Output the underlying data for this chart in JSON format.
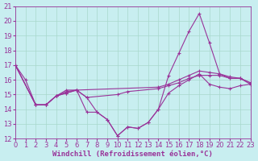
{
  "background_color": "#c8eef0",
  "grid_color": "#a8d8cc",
  "line_color": "#993399",
  "xlabel": "Windchill (Refroidissement éolien,°C)",
  "ylim": [
    12,
    21
  ],
  "xlim": [
    0,
    23
  ],
  "yticks": [
    12,
    13,
    14,
    15,
    16,
    17,
    18,
    19,
    20,
    21
  ],
  "xticks": [
    0,
    1,
    2,
    3,
    4,
    5,
    6,
    7,
    8,
    9,
    10,
    11,
    12,
    13,
    14,
    15,
    16,
    17,
    18,
    19,
    20,
    21,
    22,
    23
  ],
  "lines": [
    {
      "x": [
        0,
        1,
        2,
        3,
        4,
        5,
        6,
        7,
        8,
        9,
        10,
        11,
        12,
        13,
        14,
        15,
        16,
        17,
        18,
        19,
        20,
        21,
        22,
        23
      ],
      "y": [
        17.0,
        16.0,
        14.3,
        14.3,
        14.9,
        15.3,
        15.3,
        13.8,
        13.8,
        13.3,
        12.2,
        12.8,
        12.7,
        13.1,
        14.0,
        16.3,
        17.8,
        19.3,
        20.5,
        18.5,
        16.4,
        16.1,
        16.1,
        15.7
      ]
    },
    {
      "x": [
        0,
        2,
        3,
        4,
        5,
        6,
        14,
        15,
        16,
        17,
        18,
        19,
        20,
        21,
        22,
        23
      ],
      "y": [
        17.0,
        14.3,
        14.3,
        14.9,
        15.2,
        15.3,
        15.5,
        15.7,
        16.0,
        16.3,
        16.6,
        16.5,
        16.4,
        16.2,
        16.1,
        15.8
      ]
    },
    {
      "x": [
        0,
        2,
        3,
        4,
        5,
        6,
        7,
        10,
        11,
        14,
        15,
        16,
        17,
        18,
        19,
        20,
        21,
        22,
        23
      ],
      "y": [
        17.0,
        14.3,
        14.3,
        14.9,
        15.1,
        15.3,
        14.8,
        15.0,
        15.2,
        15.4,
        15.6,
        15.8,
        16.1,
        16.3,
        16.3,
        16.3,
        16.1,
        16.1,
        15.8
      ]
    },
    {
      "x": [
        0,
        2,
        3,
        4,
        5,
        6,
        7,
        8,
        9,
        10,
        11,
        12,
        13,
        14,
        15,
        16,
        17,
        18,
        19,
        20,
        21,
        22,
        23
      ],
      "y": [
        17.0,
        14.3,
        14.3,
        14.9,
        15.1,
        15.3,
        14.8,
        13.8,
        13.3,
        12.2,
        12.8,
        12.7,
        13.1,
        14.0,
        15.1,
        15.6,
        16.0,
        16.4,
        15.7,
        15.5,
        15.4,
        15.6,
        15.7
      ]
    }
  ],
  "xlabel_fontsize": 6.5,
  "tick_fontsize": 6.0
}
